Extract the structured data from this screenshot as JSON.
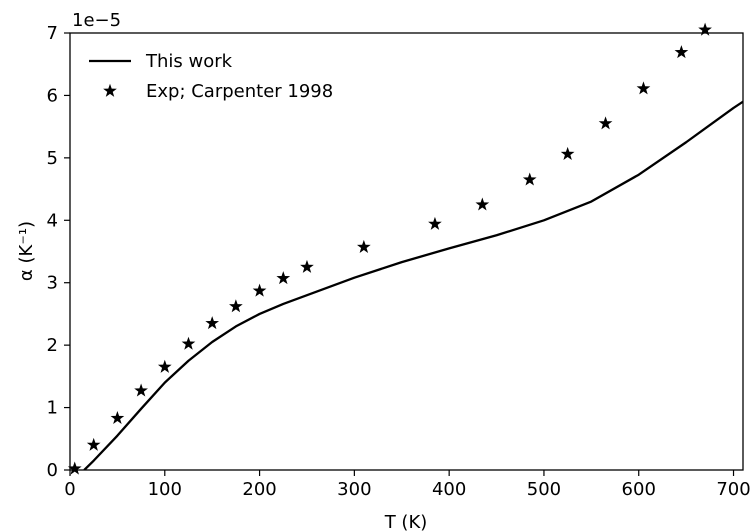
{
  "chart_data": {
    "type": "line",
    "title": "",
    "xlabel": "T  (K)",
    "ylabel": "α  (K⁻¹)",
    "y_offset_label": "1e−5",
    "xlim": [
      0,
      710
    ],
    "ylim": [
      0,
      7
    ],
    "xticks": [
      0,
      100,
      200,
      300,
      400,
      500,
      600,
      700
    ],
    "xtick_labels": [
      "0",
      "100",
      "200",
      "300",
      "400",
      "500",
      "600",
      "700"
    ],
    "yticks": [
      0,
      1,
      2,
      3,
      4,
      5,
      6,
      7
    ],
    "ytick_labels": [
      "0",
      "1",
      "2",
      "3",
      "4",
      "5",
      "6",
      "7"
    ],
    "y_scale_factor": "1e-5",
    "grid": false,
    "legend_position": "top-left",
    "series": [
      {
        "name": "This work",
        "style": "line",
        "color": "#000000",
        "x": [
          15,
          25,
          50,
          75,
          100,
          125,
          150,
          175,
          200,
          225,
          250,
          300,
          350,
          400,
          450,
          500,
          550,
          600,
          650,
          700,
          710
        ],
        "y": [
          0.0,
          0.15,
          0.55,
          0.98,
          1.4,
          1.75,
          2.05,
          2.3,
          2.5,
          2.66,
          2.8,
          3.08,
          3.33,
          3.55,
          3.76,
          4.0,
          4.3,
          4.73,
          5.25,
          5.8,
          5.9
        ]
      },
      {
        "name": "Exp; Carpenter 1998",
        "style": "marker",
        "marker": "star",
        "color": "#000000",
        "x": [
          5,
          25,
          50,
          75,
          100,
          125,
          150,
          175,
          200,
          225,
          250,
          310,
          385,
          435,
          485,
          525,
          565,
          605,
          645,
          670
        ],
        "y": [
          0.02,
          0.4,
          0.83,
          1.27,
          1.65,
          2.02,
          2.35,
          2.62,
          2.87,
          3.07,
          3.25,
          3.57,
          3.94,
          4.25,
          4.65,
          5.06,
          5.55,
          6.11,
          6.69,
          7.05
        ]
      }
    ]
  }
}
